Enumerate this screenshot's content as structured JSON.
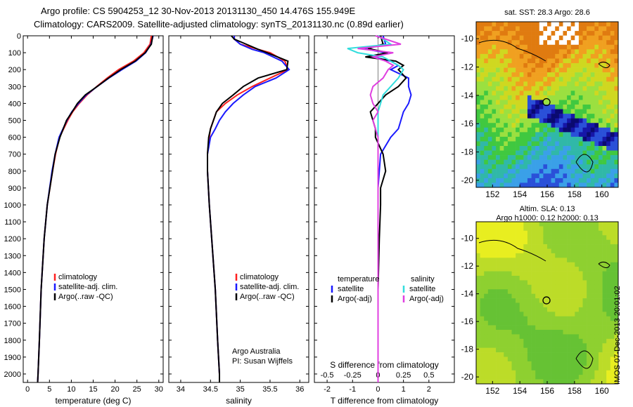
{
  "title_line1": "Argo profile: CS 5904253_12 30-Nov-2013 20131130_450 14.476S 155.949E",
  "title_line2": "Climatology: CARS2009. Satellite-adjusted climatology: synTS_20131130.nc (0.89d earlier)",
  "stamp": "IMOS 07-Dec-2013 20:01:02",
  "colors": {
    "climatology": "#ff2020",
    "satellite": "#1a1aff",
    "argo": "#000000",
    "sat_salinity": "#33dddd",
    "argo_salinity": "#e040e0"
  },
  "chart_data": [
    {
      "type": "line",
      "xlabel": "temperature (deg C)",
      "ylabel": "",
      "xlim": [
        -1,
        31
      ],
      "ylim": [
        2050,
        0
      ],
      "xticks": [
        "0",
        "5",
        "10",
        "15",
        "20",
        "25",
        "30"
      ],
      "yticks": [
        "0",
        "100",
        "200",
        "300",
        "400",
        "500",
        "600",
        "700",
        "800",
        "900",
        "1000",
        "1100",
        "1200",
        "1300",
        "1400",
        "1500",
        "1600",
        "1700",
        "1800",
        "1900",
        "2000"
      ],
      "legend": [
        "climatology",
        "satellite-adj. clim.",
        "Argo(..raw -QC)"
      ],
      "legend_position": "lower-center",
      "depth": [
        0,
        50,
        100,
        150,
        200,
        250,
        300,
        350,
        400,
        450,
        500,
        600,
        700,
        800,
        1000,
        1200,
        1500,
        1800,
        2000,
        2050
      ],
      "series": [
        {
          "name": "climatology",
          "color": "#ff2020",
          "values": [
            28.3,
            28.0,
            26.6,
            24.2,
            20.8,
            18.2,
            15.8,
            13.6,
            11.8,
            10.3,
            9.2,
            7.3,
            6.4,
            5.7,
            4.5,
            3.8,
            3.1,
            2.7,
            2.4,
            2.3
          ]
        },
        {
          "name": "satellite-adj. clim.",
          "color": "#1a1aff",
          "values": [
            28.7,
            28.2,
            27.0,
            24.8,
            21.6,
            18.6,
            15.9,
            13.4,
            11.6,
            10.1,
            9.0,
            7.2,
            6.3,
            5.6,
            4.5,
            3.8,
            3.1,
            2.7,
            2.4,
            2.3
          ]
        },
        {
          "name": "Argo(..raw -QC)",
          "color": "#000000",
          "values": [
            28.6,
            28.3,
            26.9,
            24.6,
            21.3,
            18.5,
            15.9,
            13.2,
            11.4,
            10.2,
            8.9,
            7.4,
            6.3,
            5.7,
            4.5,
            3.8,
            3.1,
            2.7,
            2.4,
            2.3
          ]
        }
      ]
    },
    {
      "type": "line",
      "xlabel": "salinity",
      "ylabel": "",
      "xlim": [
        33.8,
        36.15
      ],
      "ylim": [
        2050,
        0
      ],
      "xticks": [
        "34",
        "34.5",
        "35",
        "35.5",
        "36"
      ],
      "legend": [
        "climatology",
        "satellite-adj. clim.",
        "Argo(..raw -QC)"
      ],
      "legend_position": "lower-right",
      "annotation": [
        "Argo Australia",
        "PI: Susan Wijffels"
      ],
      "depth": [
        0,
        20,
        50,
        80,
        100,
        150,
        200,
        250,
        300,
        350,
        400,
        450,
        500,
        550,
        600,
        700,
        800,
        1000,
        1200,
        1500,
        1800,
        2000,
        2050
      ],
      "series": [
        {
          "name": "climatology",
          "color": "#ff2020",
          "values": [
            34.9,
            34.9,
            35.0,
            35.3,
            35.5,
            35.75,
            35.8,
            35.5,
            35.2,
            34.95,
            34.75,
            34.6,
            34.55,
            34.5,
            34.48,
            34.45,
            34.45,
            34.48,
            34.52,
            34.58,
            34.62,
            34.65,
            34.65
          ]
        },
        {
          "name": "satellite-adj. clim.",
          "color": "#1a1aff",
          "values": [
            34.9,
            34.9,
            35.0,
            35.2,
            35.4,
            35.7,
            35.82,
            35.6,
            35.25,
            35.05,
            34.88,
            34.75,
            34.65,
            34.58,
            34.5,
            34.45,
            34.45,
            34.48,
            34.52,
            34.58,
            34.62,
            34.65,
            34.65
          ]
        },
        {
          "name": "Argo(..raw -QC)",
          "color": "#000000",
          "values": [
            34.85,
            34.9,
            35.1,
            35.3,
            35.45,
            35.8,
            35.78,
            35.3,
            35.05,
            34.88,
            34.7,
            34.6,
            34.55,
            34.5,
            34.47,
            34.45,
            34.45,
            34.48,
            34.52,
            34.58,
            34.62,
            34.65,
            34.65
          ]
        }
      ]
    },
    {
      "type": "line",
      "xlabel": "T difference from climatology",
      "xlabel2": "S difference from climatology",
      "ylabel": "",
      "xlim": [
        -2.5,
        3.0
      ],
      "ylim": [
        2050,
        0
      ],
      "xticks": [
        "-2",
        "-1",
        "0",
        "1",
        "2"
      ],
      "xticks2": [
        "-0.5",
        "-0.25",
        "0",
        "0.25",
        "0.5"
      ],
      "legend_titles": [
        "temperature",
        "salinity"
      ],
      "legend": [
        "satellite",
        "Argo(-adj)",
        "satellite",
        "Argo(-adj)"
      ],
      "legend_position": "lower-right",
      "depth": [
        0,
        50,
        75,
        100,
        125,
        150,
        175,
        200,
        250,
        300,
        350,
        400,
        450,
        500,
        550,
        600,
        700,
        800,
        900,
        1000,
        1200,
        1500,
        1800,
        2000,
        2050
      ],
      "series": [
        {
          "name": "temperature satellite",
          "color": "#1a1aff",
          "values": [
            0.2,
            0.3,
            -0.6,
            0.3,
            -0.2,
            0.5,
            0.8,
            0.5,
            1.2,
            1.2,
            1.3,
            1.2,
            1.0,
            0.9,
            0.8,
            0.5,
            0.1,
            0.05,
            0.0,
            0.0,
            0.0,
            0.0,
            0.0,
            0.0,
            0.0
          ]
        },
        {
          "name": "temperature Argo(-adj)",
          "color": "#000000",
          "values": [
            0.1,
            0.2,
            -0.4,
            0.4,
            -0.5,
            0.7,
            1.0,
            0.8,
            1.1,
            0.8,
            0.3,
            0.0,
            -0.3,
            -0.2,
            -0.1,
            -0.1,
            0.2,
            0.3,
            0.1,
            0.1,
            0.05,
            0.0,
            0.0,
            0.0,
            0.0
          ]
        },
        {
          "name": "salinity satellite",
          "color": "#33dddd",
          "values": [
            0.0,
            0.5,
            -1.2,
            -0.8,
            0.2,
            0.5,
            0.8,
            1.0,
            0.8,
            0.5,
            0.2,
            0.1,
            0.0,
            0.0,
            0.0,
            0.0,
            0.0,
            0.0,
            0.0,
            0.0,
            0.0,
            0.0,
            0.0,
            0.0,
            0.0
          ]
        },
        {
          "name": "salinity Argo(-adj)",
          "color": "#e040e0",
          "values": [
            -0.1,
            0.9,
            -0.8,
            0.6,
            -0.2,
            0.3,
            0.6,
            0.4,
            0.2,
            -0.2,
            -0.3,
            -0.2,
            0.0,
            -0.2,
            -0.1,
            0.0,
            0.0,
            0.0,
            0.0,
            0.0,
            0.0,
            0.0,
            0.0,
            0.0,
            0.0
          ]
        }
      ]
    },
    {
      "type": "heatmap",
      "title": "sat. SST: 28.3 Argo: 28.6",
      "xlim": [
        150.8,
        161.2
      ],
      "ylim": [
        -20.5,
        -8.8
      ],
      "xticks": [
        "152",
        "154",
        "156",
        "158",
        "160"
      ],
      "yticks": [
        "-10",
        "-12",
        "-14",
        "-16",
        "-18",
        "-20"
      ],
      "marker": {
        "lon": 155.949,
        "lat": -14.476
      }
    },
    {
      "type": "heatmap",
      "title": "Altim. SLA: 0.13",
      "subtitle": "Argo h1000: 0.12 h2000: 0.13",
      "xlim": [
        150.8,
        161.2
      ],
      "ylim": [
        -20.5,
        -8.8
      ],
      "xticks": [
        "152",
        "154",
        "156",
        "158",
        "160"
      ],
      "yticks": [
        "-10",
        "-12",
        "-14",
        "-16",
        "-18",
        "-20"
      ],
      "marker": {
        "lon": 155.949,
        "lat": -14.476
      }
    }
  ]
}
